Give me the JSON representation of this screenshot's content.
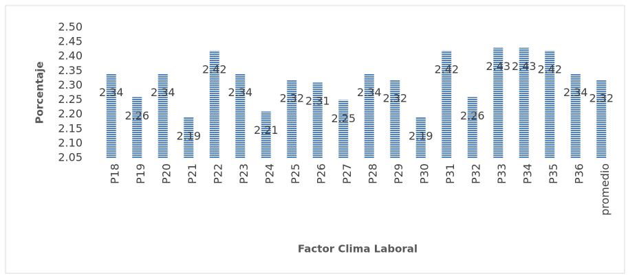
{
  "chart_data": {
    "type": "bar",
    "x_label": "Factor Clima Laboral",
    "y_label": "Porcentaje",
    "categories": [
      "P18",
      "P19",
      "P20",
      "P21",
      "P22",
      "P23",
      "P24",
      "P25",
      "P26",
      "P27",
      "P28",
      "P29",
      "P30",
      "P31",
      "P32",
      "P33",
      "P34",
      "P35",
      "P36",
      "promedio"
    ],
    "values": [
      2.34,
      2.26,
      2.34,
      2.19,
      2.42,
      2.34,
      2.21,
      2.32,
      2.31,
      2.25,
      2.34,
      2.32,
      2.19,
      2.42,
      2.26,
      2.43,
      2.43,
      2.42,
      2.34,
      2.32
    ],
    "color": "#4f81bd",
    "ylim": [
      2.05,
      2.5
    ],
    "yticks": [
      2.05,
      {
        "value": 2.1,
        "label": "2.10"
      },
      2.15,
      {
        "value": 2.2,
        "label": "2.20"
      },
      2.25,
      {
        "value": 2.3,
        "label": "2.30"
      },
      2.35,
      {
        "value": 2.4,
        "label": "2.40"
      },
      2.45,
      {
        "value": 2.5,
        "label": "2.50"
      }
    ],
    "grid": false
  }
}
